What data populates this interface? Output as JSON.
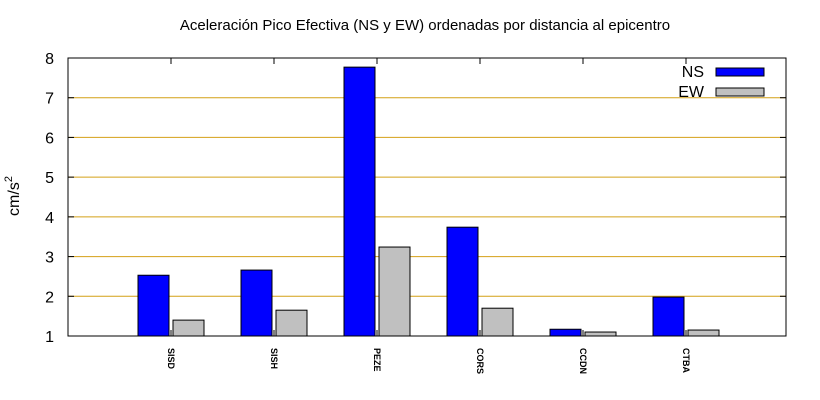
{
  "chart_data": {
    "type": "bar",
    "title": "Aceleración Pico Efectiva (NS y EW) ordenadas por distancia al epicentro",
    "ylabel": "cm/s",
    "ylabel_sup": "2",
    "xlabel": "",
    "ylim": [
      1,
      8
    ],
    "yticks": [
      1,
      2,
      3,
      4,
      5,
      6,
      7,
      8
    ],
    "grid": true,
    "legend_position": "top-right",
    "categories": [
      "SISD",
      "SISH",
      "PEZE",
      "CORS",
      "CCDN",
      "CTBA"
    ],
    "series": [
      {
        "name": "NS",
        "color": "#0000ff",
        "values": [
          2.53,
          2.66,
          7.77,
          3.74,
          1.17,
          1.98
        ]
      },
      {
        "name": "EW",
        "color": "#c0c0c0",
        "values": [
          1.4,
          1.65,
          3.24,
          1.7,
          1.1,
          1.15
        ]
      }
    ],
    "grid_color": "#d4a017"
  }
}
